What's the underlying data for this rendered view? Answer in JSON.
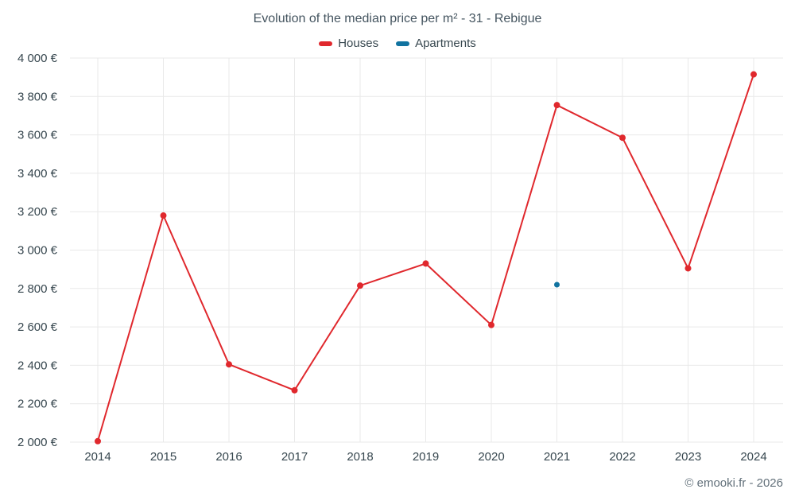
{
  "header": {
    "title": "Evolution of the median price per m² - 31 - Rebigue"
  },
  "footer": {
    "credit": "© emooki.fr - 2026"
  },
  "chart_data": {
    "type": "line",
    "title": "Evolution of the median price per m² - 31 - Rebigue",
    "x": [
      "2014",
      "2015",
      "2016",
      "2017",
      "2018",
      "2019",
      "2020",
      "2021",
      "2022",
      "2023",
      "2024"
    ],
    "series": [
      {
        "name": "Houses",
        "color": "#e0282d",
        "marker_radius": 4,
        "draw_line": true,
        "values": [
          2005,
          3180,
          2405,
          2270,
          2815,
          2930,
          2610,
          3755,
          3585,
          2905,
          3915
        ]
      },
      {
        "name": "Apartments",
        "color": "#1173a0",
        "marker_radius": 3.5,
        "draw_line": false,
        "values": [
          null,
          null,
          null,
          null,
          null,
          null,
          null,
          2820,
          null,
          null,
          null
        ]
      }
    ],
    "ylim": [
      2000,
      4000
    ],
    "ytick_step": 200,
    "y_suffix": " €",
    "grid": true,
    "legend_position": "top",
    "style": {
      "grid_color": "#e9e9e9",
      "tick_color": "#37474f",
      "title_color": "#44545f",
      "footer_color": "#62707a",
      "background": "#ffffff"
    }
  }
}
